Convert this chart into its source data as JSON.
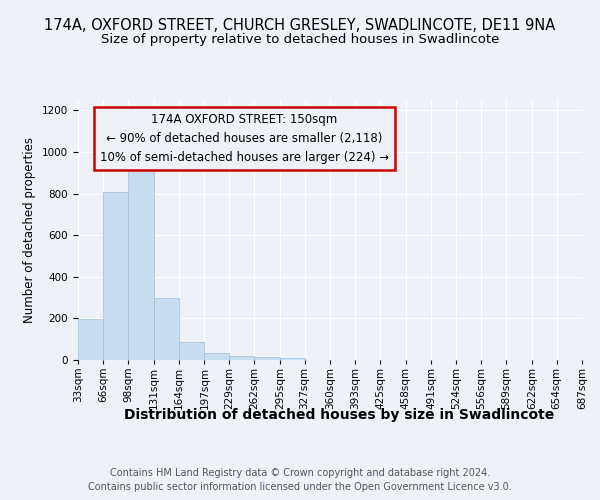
{
  "title": "174A, OXFORD STREET, CHURCH GRESLEY, SWADLINCOTE, DE11 9NA",
  "subtitle": "Size of property relative to detached houses in Swadlincote",
  "xlabel": "Distribution of detached houses by size in Swadlincote",
  "ylabel": "Number of detached properties",
  "footer_line1": "Contains HM Land Registry data © Crown copyright and database right 2024.",
  "footer_line2": "Contains public sector information licensed under the Open Government Licence v3.0.",
  "annotation_line1": "174A OXFORD STREET: 150sqm",
  "annotation_line2": "← 90% of detached houses are smaller (2,118)",
  "annotation_line3": "10% of semi-detached houses are larger (224) →",
  "bin_edges": [
    33,
    66,
    98,
    131,
    164,
    197,
    229,
    262,
    295,
    327,
    360,
    393,
    425,
    458,
    491,
    524,
    556,
    589,
    622,
    654,
    687
  ],
  "bar_heights": [
    195,
    810,
    930,
    300,
    85,
    35,
    20,
    15,
    12,
    0,
    0,
    0,
    0,
    0,
    0,
    0,
    0,
    0,
    0,
    0
  ],
  "bar_color": "#c9ddf0",
  "bar_edge_color": "#9bbfdd",
  "background_color": "#eef2f8",
  "annotation_box_edge_color": "#cc0000",
  "ylim": [
    0,
    1250
  ],
  "yticks": [
    0,
    200,
    400,
    600,
    800,
    1000,
    1200
  ],
  "title_fontsize": 10.5,
  "subtitle_fontsize": 9.5,
  "xlabel_fontsize": 10,
  "ylabel_fontsize": 8.5,
  "tick_fontsize": 7.5,
  "annotation_fontsize": 8.5,
  "footer_fontsize": 7
}
